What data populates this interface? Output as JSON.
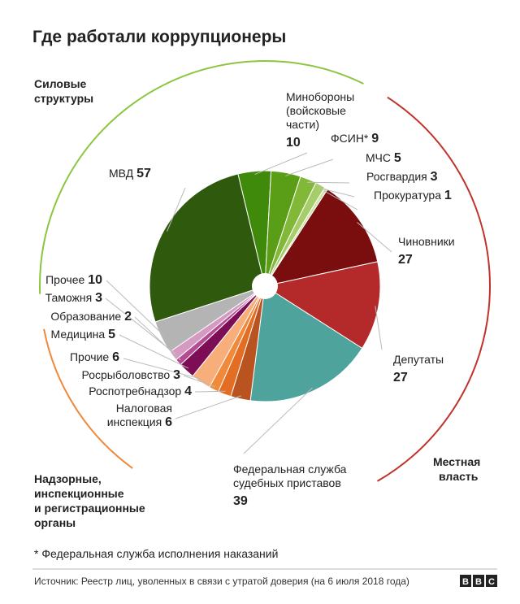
{
  "title": "Где работали коррупционеры",
  "groups": {
    "power": [
      "Силовые",
      "структуры"
    ],
    "local": [
      "Местная",
      "власть"
    ],
    "oversight": [
      "Надзорные,",
      "инспекционные",
      "и регистрационные",
      "органы"
    ]
  },
  "footnote": "* Федеральная служба исполнения наказаний",
  "source": "Источник: Реестр лиц, уволенных в связи с утратой доверия (на 6 июля 2018 года)",
  "brand": [
    "B",
    "B",
    "C"
  ],
  "chart_data": {
    "type": "pie",
    "title": "Где работали коррупционеры",
    "slices": [
      {
        "key": "mo",
        "name": [
          "Минобороны",
          "(войсковые",
          "части)"
        ],
        "value": 10,
        "color": "#3f8a0b"
      },
      {
        "key": "fsin",
        "name": [
          "ФСИН*"
        ],
        "value": 9,
        "color": "#5a9e18"
      },
      {
        "key": "mchs",
        "name": [
          "МЧС"
        ],
        "value": 5,
        "color": "#82b838"
      },
      {
        "key": "rg",
        "name": [
          "Росгвардия"
        ],
        "value": 3,
        "color": "#a7cd6b"
      },
      {
        "key": "pr",
        "name": [
          "Прокуратура"
        ],
        "value": 1,
        "color": "#cde3a8"
      },
      {
        "key": "ch",
        "name": [
          "Чиновники"
        ],
        "value": 27,
        "color": "#7a0d0d"
      },
      {
        "key": "dep",
        "name": [
          "Депутаты"
        ],
        "value": 27,
        "color": "#b42a2a"
      },
      {
        "key": "fssp",
        "name": [
          "Федеральная служба",
          "судебных приставов"
        ],
        "value": 39,
        "color": "#4ea39c"
      },
      {
        "key": "ni",
        "name": [
          "Налоговая",
          "инспекция"
        ],
        "value": 6,
        "color": "#b9531f"
      },
      {
        "key": "rpn",
        "name": [
          "Роспотребнадзор"
        ],
        "value": 4,
        "color": "#e46d24"
      },
      {
        "key": "rr",
        "name": [
          "Росрыболовство"
        ],
        "value": 3,
        "color": "#f08a3a"
      },
      {
        "key": "pro6",
        "name": [
          "Прочие"
        ],
        "value": 6,
        "color": "#f7ae7a"
      },
      {
        "key": "med",
        "name": [
          "Медицина"
        ],
        "value": 5,
        "color": "#7d0e55"
      },
      {
        "key": "obr",
        "name": [
          "Образование"
        ],
        "value": 2,
        "color": "#b54c93"
      },
      {
        "key": "tam",
        "name": [
          "Таможня"
        ],
        "value": 3,
        "color": "#d59ac2"
      },
      {
        "key": "pro10",
        "name": [
          "Прочее"
        ],
        "value": 10,
        "color": "#b4b4b4"
      },
      {
        "key": "mvd",
        "name": [
          "МВД"
        ],
        "value": 57,
        "color": "#2f5a0e"
      }
    ],
    "arc_colors": {
      "power": "#8cc63f",
      "local": "#c0332b",
      "oversight": "#f0883a"
    }
  }
}
